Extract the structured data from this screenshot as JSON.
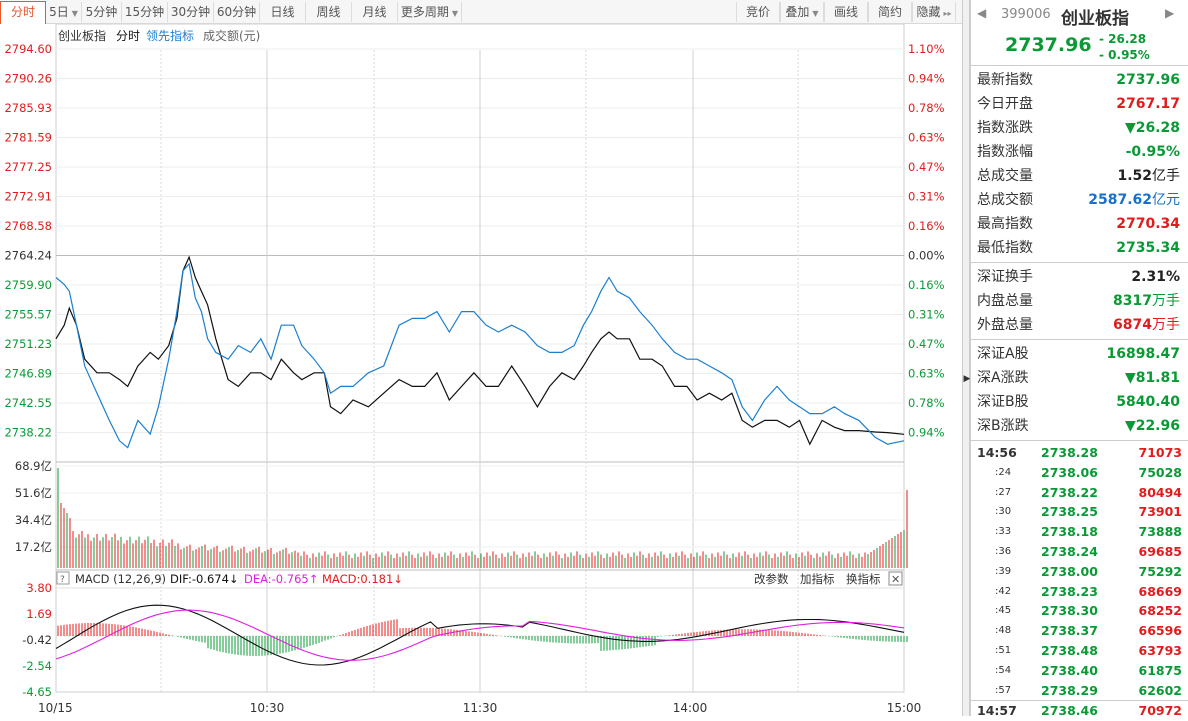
{
  "toolbar": {
    "tabs": [
      {
        "label": "分时",
        "active": true,
        "dropdown": false
      },
      {
        "label": "5日",
        "active": false,
        "dropdown": true
      },
      {
        "label": "5分钟",
        "active": false,
        "dropdown": false
      },
      {
        "label": "15分钟",
        "active": false,
        "dropdown": false
      },
      {
        "label": "30分钟",
        "active": false,
        "dropdown": false
      },
      {
        "label": "60分钟",
        "active": false,
        "dropdown": false
      },
      {
        "label": "日线",
        "active": false,
        "dropdown": false
      },
      {
        "label": "周线",
        "active": false,
        "dropdown": false
      },
      {
        "label": "月线",
        "active": false,
        "dropdown": false
      },
      {
        "label": "更多周期",
        "active": false,
        "dropdown": true
      }
    ],
    "right_buttons": [
      {
        "label": "竞价",
        "dropdown": false
      },
      {
        "label": "叠加",
        "dropdown": true
      },
      {
        "label": "画线",
        "dropdown": false
      },
      {
        "label": "简约",
        "dropdown": false
      },
      {
        "label": "隐藏",
        "dropdown": false,
        "suffix": "▸▸"
      }
    ]
  },
  "chart": {
    "legend": [
      "创业板指",
      "分时",
      "领先指标",
      "成交额(元)"
    ],
    "price_ticks": [
      "2794.60",
      "2790.26",
      "2785.93",
      "2781.59",
      "2777.25",
      "2772.91",
      "2768.58",
      "2764.24",
      "2759.90",
      "2755.57",
      "2751.23",
      "2746.89",
      "2742.55",
      "2738.22"
    ],
    "pct_ticks": [
      "1.10%",
      "0.94%",
      "0.78%",
      "0.63%",
      "0.47%",
      "0.31%",
      "0.16%",
      "0.00%",
      "0.16%",
      "0.31%",
      "0.47%",
      "0.63%",
      "0.78%",
      "0.94%"
    ],
    "vol_ticks": [
      "68.9亿",
      "51.6亿",
      "34.4亿",
      "17.2亿"
    ],
    "macd_title": "MACD (12,26,9)",
    "dif": "DIF:-0.674↓",
    "dea": "DEA:-0.765↑",
    "macd": "MACD:0.181↓",
    "macd_buttons": [
      "改参数",
      "加指标",
      "换指标"
    ],
    "macd_ticks": [
      "3.80",
      "1.69",
      "-0.42",
      "-2.54",
      "-4.65"
    ],
    "time_ticks": [
      "10/15",
      "10:30",
      "11:30",
      "14:00",
      "15:00"
    ],
    "colors": {
      "up": "#e01c1c",
      "down": "#0a9a35",
      "price_line": "#111111",
      "lead_line": "#1a7fd0",
      "dea": "#e020e0"
    }
  },
  "chart_data": {
    "type": "line",
    "title": "创业板指 分时",
    "series": [
      {
        "name": "分时",
        "points": [
          [
            0,
            2752
          ],
          [
            8,
            2754
          ],
          [
            13,
            2756.5
          ],
          [
            20,
            2754
          ],
          [
            28,
            2749
          ],
          [
            40,
            2747
          ],
          [
            52,
            2747
          ],
          [
            62,
            2746
          ],
          [
            70,
            2745
          ],
          [
            80,
            2748
          ],
          [
            92,
            2750
          ],
          [
            100,
            2749
          ],
          [
            110,
            2751
          ],
          [
            118,
            2755
          ],
          [
            124,
            2762
          ],
          [
            130,
            2764
          ],
          [
            136,
            2761
          ],
          [
            142,
            2759
          ],
          [
            148,
            2757
          ],
          [
            156,
            2752
          ],
          [
            168,
            2746
          ],
          [
            178,
            2745
          ],
          [
            190,
            2747
          ],
          [
            200,
            2747
          ],
          [
            210,
            2746
          ],
          [
            220,
            2749
          ],
          [
            232,
            2747
          ],
          [
            240,
            2746
          ],
          [
            252,
            2747
          ],
          [
            262,
            2747
          ],
          [
            268,
            2742
          ],
          [
            278,
            2741
          ],
          [
            290,
            2743
          ],
          [
            305,
            2742
          ],
          [
            320,
            2744
          ],
          [
            335,
            2746
          ],
          [
            348,
            2745
          ],
          [
            360,
            2745
          ],
          [
            372,
            2747
          ],
          [
            384,
            2743
          ],
          [
            396,
            2745
          ],
          [
            408,
            2747
          ],
          [
            420,
            2745
          ],
          [
            432,
            2745
          ],
          [
            445,
            2748
          ],
          [
            458,
            2745
          ],
          [
            470,
            2742
          ],
          [
            482,
            2745
          ],
          [
            494,
            2747
          ],
          [
            506,
            2746
          ],
          [
            515,
            2748
          ],
          [
            523,
            2750
          ],
          [
            532,
            2752
          ],
          [
            540,
            2753
          ],
          [
            548,
            2752
          ],
          [
            560,
            2752
          ],
          [
            570,
            2749
          ],
          [
            582,
            2749
          ],
          [
            592,
            2748
          ],
          [
            604,
            2745
          ],
          [
            616,
            2745
          ],
          [
            626,
            2743
          ],
          [
            638,
            2744
          ],
          [
            650,
            2743
          ],
          [
            660,
            2744
          ],
          [
            670,
            2740
          ],
          [
            680,
            2739
          ],
          [
            692,
            2740
          ],
          [
            704,
            2740
          ],
          [
            716,
            2739
          ],
          [
            726,
            2740
          ],
          [
            736,
            2736.5
          ],
          [
            748,
            2740
          ],
          [
            760,
            2739
          ],
          [
            770,
            2738.5
          ],
          [
            784,
            2738.5
          ],
          [
            800,
            2738.3
          ],
          [
            812,
            2738.2
          ],
          [
            828,
            2737.96
          ]
        ]
      },
      {
        "name": "领先指标",
        "points": [
          [
            0,
            2761
          ],
          [
            8,
            2760
          ],
          [
            13,
            2759
          ],
          [
            20,
            2754
          ],
          [
            28,
            2748
          ],
          [
            40,
            2744
          ],
          [
            52,
            2740
          ],
          [
            62,
            2737
          ],
          [
            70,
            2736
          ],
          [
            80,
            2740
          ],
          [
            92,
            2738
          ],
          [
            100,
            2742
          ],
          [
            110,
            2749
          ],
          [
            118,
            2756
          ],
          [
            124,
            2762
          ],
          [
            130,
            2763
          ],
          [
            136,
            2758
          ],
          [
            142,
            2756
          ],
          [
            148,
            2752
          ],
          [
            156,
            2750
          ],
          [
            168,
            2749
          ],
          [
            178,
            2751
          ],
          [
            190,
            2750
          ],
          [
            200,
            2752
          ],
          [
            210,
            2749
          ],
          [
            220,
            2754
          ],
          [
            232,
            2754
          ],
          [
            240,
            2751
          ],
          [
            252,
            2749
          ],
          [
            262,
            2747
          ],
          [
            268,
            2744
          ],
          [
            278,
            2745
          ],
          [
            290,
            2745
          ],
          [
            305,
            2747
          ],
          [
            320,
            2748
          ],
          [
            335,
            2754
          ],
          [
            348,
            2755
          ],
          [
            360,
            2755
          ],
          [
            372,
            2756
          ],
          [
            384,
            2753
          ],
          [
            396,
            2756
          ],
          [
            408,
            2756
          ],
          [
            420,
            2754
          ],
          [
            432,
            2753
          ],
          [
            445,
            2754
          ],
          [
            458,
            2753
          ],
          [
            470,
            2751
          ],
          [
            482,
            2750
          ],
          [
            494,
            2750
          ],
          [
            506,
            2751
          ],
          [
            515,
            2754
          ],
          [
            523,
            2756
          ],
          [
            532,
            2759
          ],
          [
            540,
            2761
          ],
          [
            548,
            2759
          ],
          [
            560,
            2758
          ],
          [
            570,
            2756
          ],
          [
            582,
            2754
          ],
          [
            592,
            2752
          ],
          [
            604,
            2750
          ],
          [
            616,
            2749
          ],
          [
            626,
            2749
          ],
          [
            638,
            2748
          ],
          [
            650,
            2747
          ],
          [
            660,
            2746
          ],
          [
            670,
            2742
          ],
          [
            680,
            2740
          ],
          [
            692,
            2743
          ],
          [
            704,
            2745
          ],
          [
            716,
            2743
          ],
          [
            726,
            2742
          ],
          [
            736,
            2741
          ],
          [
            748,
            2741
          ],
          [
            760,
            2742
          ],
          [
            770,
            2741
          ],
          [
            784,
            2740
          ],
          [
            800,
            2737.5
          ],
          [
            812,
            2736.5
          ],
          [
            828,
            2737
          ]
        ]
      }
    ],
    "xlabel": "",
    "ylabel": "",
    "ylim": [
      2734,
      2794.6
    ],
    "xticks": [
      "10/15",
      "10:30",
      "11:30",
      "14:00",
      "15:00"
    ]
  },
  "right_panel": {
    "code": "399006",
    "name": "创业板指",
    "price": "2737.96",
    "change": "- 26.28",
    "change_pct": "- 0.95%",
    "group1": [
      {
        "label": "最新指数",
        "value": "2737.96",
        "unit": "",
        "color": "green"
      },
      {
        "label": "今日开盘",
        "value": "2767.17",
        "unit": "",
        "color": "red"
      },
      {
        "label": "指数涨跌",
        "value": "▼26.28",
        "unit": "",
        "color": "green"
      },
      {
        "label": "指数涨幅",
        "value": "-0.95%",
        "unit": "",
        "color": "green"
      },
      {
        "label": "总成交量",
        "value": "1.52",
        "unit": "亿手",
        "color": "dark"
      },
      {
        "label": "总成交额",
        "value": "2587.62",
        "unit": "亿元",
        "color": "blue"
      },
      {
        "label": "最高指数",
        "value": "2770.34",
        "unit": "",
        "color": "red"
      },
      {
        "label": "最低指数",
        "value": "2735.34",
        "unit": "",
        "color": "green"
      }
    ],
    "group2": [
      {
        "label": "深证换手",
        "value": "2.31%",
        "unit": "",
        "color": "dark"
      },
      {
        "label": "内盘总量",
        "value": "8317",
        "unit": "万手",
        "color": "green"
      },
      {
        "label": "外盘总量",
        "value": "6874",
        "unit": "万手",
        "color": "red"
      }
    ],
    "group3": [
      {
        "label": "深证A股",
        "value": "16898.47",
        "unit": "",
        "color": "green"
      },
      {
        "label": "深A涨跌",
        "value": "▼81.81",
        "unit": "",
        "color": "green"
      },
      {
        "label": "深证B股",
        "value": "5840.40",
        "unit": "",
        "color": "green"
      },
      {
        "label": "深B涨跌",
        "value": "▼22.96",
        "unit": "",
        "color": "green"
      }
    ],
    "ticks": [
      {
        "time": "14:56",
        "full": true,
        "price": "2738.28",
        "vol": "71073",
        "color": "red"
      },
      {
        "time": ":24",
        "full": false,
        "price": "2738.06",
        "vol": "75028",
        "color": "green"
      },
      {
        "time": ":27",
        "full": false,
        "price": "2738.22",
        "vol": "80494",
        "color": "red"
      },
      {
        "time": ":30",
        "full": false,
        "price": "2738.25",
        "vol": "73901",
        "color": "red"
      },
      {
        "time": ":33",
        "full": false,
        "price": "2738.18",
        "vol": "73888",
        "color": "green"
      },
      {
        "time": ":36",
        "full": false,
        "price": "2738.24",
        "vol": "69685",
        "color": "red"
      },
      {
        "time": ":39",
        "full": false,
        "price": "2738.00",
        "vol": "75292",
        "color": "green"
      },
      {
        "time": ":42",
        "full": false,
        "price": "2738.23",
        "vol": "68669",
        "color": "red"
      },
      {
        "time": ":45",
        "full": false,
        "price": "2738.30",
        "vol": "68252",
        "color": "red"
      },
      {
        "time": ":48",
        "full": false,
        "price": "2738.37",
        "vol": "66596",
        "color": "red"
      },
      {
        "time": ":51",
        "full": false,
        "price": "2738.48",
        "vol": "63793",
        "color": "red"
      },
      {
        "time": ":54",
        "full": false,
        "price": "2738.40",
        "vol": "61875",
        "color": "green"
      },
      {
        "time": ":57",
        "full": false,
        "price": "2738.29",
        "vol": "62602",
        "color": "green"
      },
      {
        "time": "14:57",
        "full": true,
        "price": "2738.46",
        "vol": "70972",
        "color": "red"
      }
    ]
  }
}
